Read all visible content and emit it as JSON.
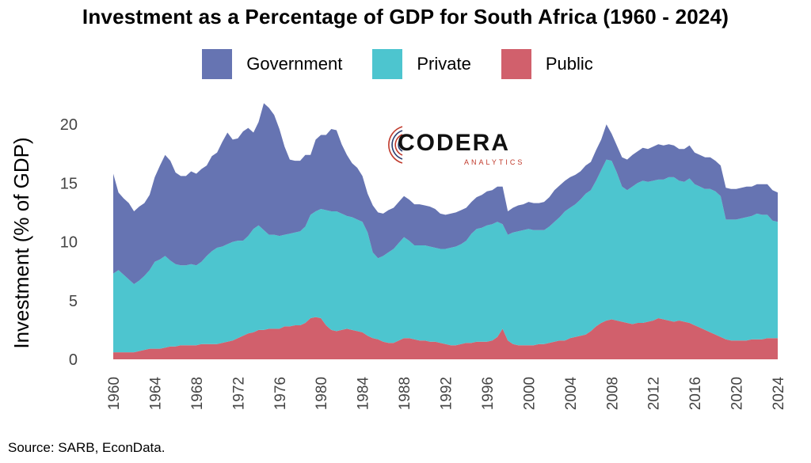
{
  "title": "Investment as a Percentage of GDP for South Africa (1960 - 2024)",
  "source": "Source: SARB, EconData.",
  "logo": {
    "name": "CODERA",
    "sub": "ANALYTICS"
  },
  "colors": {
    "Government": "#6674b2",
    "Private": "#4dc5cf",
    "Public": "#d1606c"
  },
  "chart_data": {
    "type": "area",
    "stacked": true,
    "ylabel": "Investment (% of GDP)",
    "xlabel": "",
    "xlim": [
      1960,
      2024
    ],
    "ylim": [
      0,
      22.5
    ],
    "yticks": [
      0,
      5,
      10,
      15,
      20
    ],
    "xticks": [
      "1960",
      "1964",
      "1968",
      "1972",
      "1976",
      "1980",
      "1984",
      "1988",
      "1992",
      "1996",
      "2000",
      "2004",
      "2008",
      "2012",
      "2016",
      "2020",
      "2024"
    ],
    "legend_position": "top",
    "x": [
      1960,
      1960.5,
      1961,
      1961.5,
      1962,
      1962.5,
      1963,
      1963.5,
      1964,
      1964.5,
      1965,
      1965.5,
      1966,
      1966.5,
      1967,
      1967.5,
      1968,
      1968.5,
      1969,
      1969.5,
      1970,
      1970.5,
      1971,
      1971.5,
      1972,
      1972.5,
      1973,
      1973.5,
      1974,
      1974.5,
      1975,
      1975.5,
      1976,
      1976.5,
      1977,
      1977.5,
      1978,
      1978.5,
      1979,
      1979.5,
      1980,
      1980.5,
      1981,
      1981.5,
      1982,
      1982.5,
      1983,
      1983.5,
      1984,
      1984.5,
      1985,
      1985.5,
      1986,
      1986.5,
      1987,
      1987.5,
      1988,
      1988.5,
      1989,
      1989.5,
      1990,
      1990.5,
      1991,
      1991.5,
      1992,
      1992.5,
      1993,
      1993.5,
      1994,
      1994.5,
      1995,
      1995.5,
      1996,
      1996.5,
      1997,
      1997.5,
      1998,
      1998.5,
      1999,
      1999.5,
      2000,
      2000.5,
      2001,
      2001.5,
      2002,
      2002.5,
      2003,
      2003.5,
      2004,
      2004.5,
      2005,
      2005.5,
      2006,
      2006.5,
      2007,
      2007.5,
      2008,
      2008.5,
      2009,
      2009.5,
      2010,
      2010.5,
      2011,
      2011.5,
      2012,
      2012.5,
      2013,
      2013.5,
      2014,
      2014.5,
      2015,
      2015.5,
      2016,
      2016.5,
      2017,
      2017.5,
      2018,
      2018.5,
      2019,
      2019.5,
      2020,
      2020.5,
      2021,
      2021.5,
      2022,
      2022.5,
      2023,
      2023.5,
      2024
    ],
    "series": [
      {
        "name": "Public",
        "values": [
          0.6,
          0.6,
          0.6,
          0.6,
          0.6,
          0.7,
          0.8,
          0.9,
          0.9,
          0.9,
          1.0,
          1.1,
          1.1,
          1.2,
          1.2,
          1.2,
          1.2,
          1.3,
          1.3,
          1.3,
          1.3,
          1.4,
          1.5,
          1.6,
          1.8,
          2.0,
          2.2,
          2.3,
          2.5,
          2.5,
          2.6,
          2.6,
          2.6,
          2.8,
          2.8,
          2.9,
          2.9,
          3.1,
          3.5,
          3.6,
          3.5,
          2.9,
          2.5,
          2.4,
          2.5,
          2.6,
          2.5,
          2.4,
          2.3,
          2.0,
          1.8,
          1.7,
          1.5,
          1.4,
          1.4,
          1.6,
          1.8,
          1.8,
          1.7,
          1.6,
          1.6,
          1.5,
          1.5,
          1.4,
          1.3,
          1.2,
          1.2,
          1.3,
          1.4,
          1.4,
          1.5,
          1.5,
          1.5,
          1.6,
          1.9,
          2.6,
          1.6,
          1.3,
          1.2,
          1.2,
          1.2,
          1.2,
          1.3,
          1.3,
          1.4,
          1.5,
          1.6,
          1.6,
          1.8,
          1.9,
          2.0,
          2.1,
          2.4,
          2.8,
          3.1,
          3.3,
          3.4,
          3.3,
          3.2,
          3.1,
          3.0,
          3.1,
          3.1,
          3.2,
          3.3,
          3.5,
          3.4,
          3.3,
          3.2,
          3.3,
          3.2,
          3.1,
          2.9,
          2.7,
          2.5,
          2.3,
          2.1,
          1.9,
          1.7,
          1.6,
          1.6,
          1.6,
          1.6,
          1.7,
          1.7,
          1.7,
          1.8,
          1.8,
          1.8
        ]
      },
      {
        "name": "Private",
        "values": [
          6.7,
          7.0,
          6.6,
          6.2,
          5.8,
          6.0,
          6.3,
          6.7,
          7.4,
          7.6,
          7.8,
          7.3,
          7.0,
          6.8,
          6.8,
          6.9,
          6.8,
          7.0,
          7.5,
          7.9,
          8.2,
          8.2,
          8.3,
          8.4,
          8.3,
          8.1,
          8.3,
          8.8,
          8.9,
          8.5,
          8.0,
          8.0,
          7.9,
          7.8,
          7.9,
          7.9,
          8.0,
          8.2,
          8.8,
          9.0,
          9.3,
          9.8,
          10.1,
          10.2,
          9.9,
          9.6,
          9.6,
          9.5,
          9.4,
          8.8,
          7.3,
          6.9,
          7.3,
          7.7,
          8.0,
          8.3,
          8.6,
          8.3,
          8.0,
          8.1,
          8.1,
          8.1,
          8.0,
          8.0,
          8.1,
          8.3,
          8.4,
          8.5,
          8.7,
          9.3,
          9.6,
          9.7,
          9.9,
          9.9,
          9.8,
          8.9,
          9.0,
          9.5,
          9.7,
          9.8,
          9.9,
          9.8,
          9.7,
          9.7,
          9.9,
          10.2,
          10.5,
          11.0,
          11.1,
          11.3,
          11.6,
          12.0,
          12.0,
          12.4,
          13.0,
          13.7,
          13.5,
          12.6,
          11.5,
          11.3,
          11.7,
          11.9,
          12.1,
          11.9,
          11.9,
          11.8,
          11.9,
          12.2,
          12.3,
          11.9,
          11.9,
          12.3,
          12.0,
          12.0,
          12.0,
          12.2,
          12.2,
          12.0,
          10.2,
          10.3,
          10.3,
          10.4,
          10.5,
          10.5,
          10.7,
          10.6,
          10.5,
          10.0,
          9.9
        ]
      },
      {
        "name": "Government",
        "values": [
          8.5,
          6.6,
          6.5,
          6.5,
          6.2,
          6.3,
          6.2,
          6.4,
          7.2,
          8.0,
          8.6,
          8.5,
          7.8,
          7.6,
          7.6,
          7.9,
          7.8,
          7.9,
          7.7,
          8.1,
          8.1,
          8.9,
          9.5,
          8.7,
          8.7,
          9.3,
          9.2,
          8.2,
          8.8,
          10.8,
          10.8,
          10.2,
          9.1,
          7.5,
          6.3,
          6.1,
          6.0,
          6.1,
          5.1,
          6.1,
          6.3,
          6.4,
          7.0,
          6.9,
          5.9,
          5.2,
          4.6,
          4.4,
          3.9,
          3.3,
          4.0,
          3.9,
          3.6,
          3.6,
          3.5,
          3.5,
          3.5,
          3.5,
          3.5,
          3.5,
          3.4,
          3.4,
          3.3,
          3.0,
          2.9,
          2.9,
          2.9,
          2.9,
          2.8,
          2.7,
          2.7,
          2.8,
          2.9,
          2.9,
          3.0,
          3.2,
          2.0,
          2.1,
          2.2,
          2.2,
          2.3,
          2.3,
          2.3,
          2.4,
          2.5,
          2.7,
          2.7,
          2.6,
          2.6,
          2.5,
          2.4,
          2.4,
          2.4,
          2.6,
          2.6,
          3.0,
          2.3,
          2.3,
          2.5,
          2.6,
          2.7,
          2.7,
          2.8,
          2.8,
          2.9,
          3.0,
          2.9,
          2.8,
          2.7,
          2.7,
          2.8,
          2.8,
          2.7,
          2.7,
          2.7,
          2.7,
          2.6,
          2.6,
          2.7,
          2.6,
          2.6,
          2.6,
          2.6,
          2.5,
          2.5,
          2.6,
          2.6,
          2.6,
          2.5
        ]
      }
    ]
  }
}
